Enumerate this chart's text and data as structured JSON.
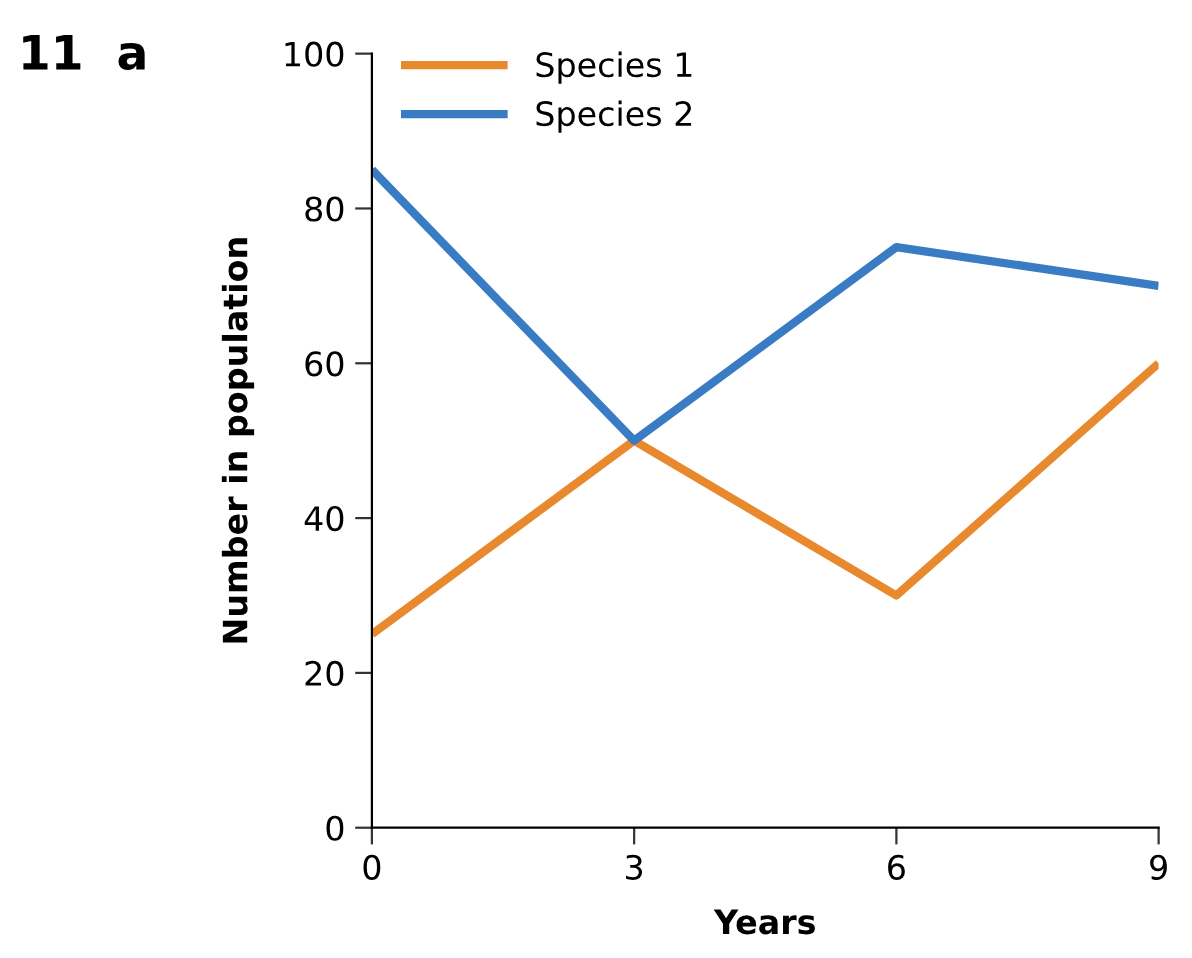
{
  "chart_data": {
    "type": "line",
    "xlabel": "Years",
    "ylabel": "Number in population",
    "annotations": [
      "11  a"
    ],
    "x": [
      0,
      3,
      6,
      9
    ],
    "series": [
      {
        "name": "Species 1",
        "color": "#e8892e",
        "values": [
          25,
          50,
          30,
          60
        ]
      },
      {
        "name": "Species 2",
        "color": "#3a7cc3",
        "values": [
          85,
          50,
          75,
          70
        ]
      }
    ],
    "xlim": [
      0,
      9
    ],
    "xticks": [
      0,
      3,
      6,
      9
    ],
    "ylim": [
      0,
      100
    ],
    "yticks": [
      0,
      20,
      40,
      60,
      80,
      100
    ],
    "grid": false,
    "legend": "top left",
    "marker": "none",
    "line_style": "solid"
  }
}
